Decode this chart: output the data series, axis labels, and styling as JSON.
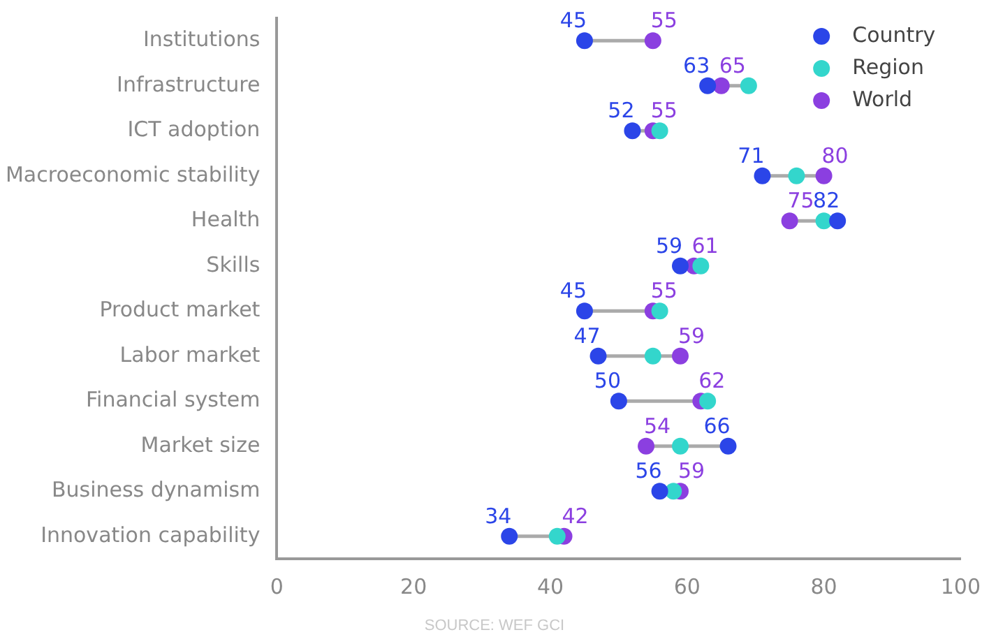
{
  "chart_data": {
    "type": "scatter",
    "orientation": "horizontal",
    "categories": [
      "Institutions",
      "Infrastructure",
      "ICT adoption",
      "Macroeconomic stability",
      "Health",
      "Skills",
      "Product market",
      "Labor market",
      "Financial system",
      "Market size",
      "Business dynamism",
      "Innovation capability"
    ],
    "series": [
      {
        "name": "Country",
        "color": "#2b45e8",
        "values": [
          45,
          63,
          52,
          71,
          82,
          59,
          45,
          47,
          50,
          66,
          56,
          34
        ],
        "value_labels": [
          "45",
          "63",
          "52",
          "71",
          "82",
          "59",
          "45",
          "47",
          "50",
          "66",
          "56",
          "34"
        ]
      },
      {
        "name": "Region",
        "color": "#33d6cc",
        "values": [
          null,
          69,
          56,
          76,
          80,
          62,
          56,
          55,
          63,
          59,
          58,
          41
        ]
      },
      {
        "name": "World",
        "color": "#8b3fe0",
        "values": [
          55,
          65,
          55,
          80,
          75,
          61,
          55,
          59,
          62,
          54,
          59,
          42
        ],
        "value_labels": [
          "55",
          "65",
          "55",
          "80",
          "75",
          "61",
          "55",
          "59",
          "62",
          "54",
          "59",
          "42"
        ]
      }
    ],
    "xlim": [
      0,
      100
    ],
    "xticks": [
      0,
      20,
      40,
      60,
      80,
      100
    ],
    "grid": false,
    "legend": "top right",
    "marker": "circle",
    "annotations": [
      "SOURCE: WEF GCI"
    ]
  }
}
